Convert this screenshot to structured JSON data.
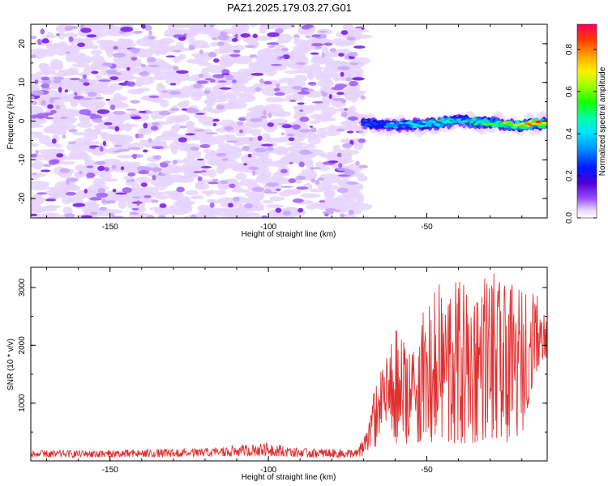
{
  "title": "PAZ1.2025.179.03.27.G01",
  "colors": {
    "snr_line": "#e03030",
    "blob_light": "#e6d4ff",
    "blob_dark": "#7a1ff0"
  },
  "chart_data": [
    {
      "type": "heatmap",
      "xlabel": "Height of straight line (km)",
      "ylabel": "Frequency (Hz)",
      "xlim": [
        -175,
        -12
      ],
      "ylim": [
        -25,
        25
      ],
      "x_ticks": [
        -150,
        -100,
        -50
      ],
      "y_ticks": [
        -20,
        -10,
        0,
        10,
        20
      ],
      "colorbar": {
        "label": "Normalized spectral amplitude",
        "range": [
          0.0,
          0.92
        ],
        "ticks": [
          0.0,
          0.2,
          0.4,
          0.6,
          0.8
        ],
        "colormap": "rainbow (purple to red)"
      },
      "noise_region_x": [
        -175,
        -70
      ],
      "signal_band": {
        "x_start": -70,
        "x_end": -12,
        "center_frequency_hz": [
          [
            -70,
            -0.5
          ],
          [
            -60,
            -1.2
          ],
          [
            -50,
            -0.8
          ],
          [
            -45,
            -0.4
          ],
          [
            -40,
            0.2
          ],
          [
            -30,
            -0.6
          ],
          [
            -20,
            -1.0
          ],
          [
            -15,
            -0.6
          ],
          [
            -12,
            -0.5
          ]
        ],
        "peak_amplitude": [
          [
            -70,
            0.28
          ],
          [
            -60,
            0.35
          ],
          [
            -50,
            0.45
          ],
          [
            -45,
            0.5
          ],
          [
            -40,
            0.4
          ],
          [
            -30,
            0.55
          ],
          [
            -20,
            0.7
          ],
          [
            -15,
            0.92
          ],
          [
            -12,
            0.6
          ]
        ]
      }
    },
    {
      "type": "line",
      "xlabel": "Height of straight line (km)",
      "ylabel": "SNR (10 * v/v)",
      "xlim": [
        -175,
        -12
      ],
      "ylim": [
        0,
        3350
      ],
      "x_ticks": [
        -150,
        -100,
        -50
      ],
      "y_ticks": [
        1000,
        2000,
        3000
      ],
      "grid": false,
      "series": [
        {
          "envelope_x": [
            -175,
            -150,
            -120,
            -100,
            -90,
            -80,
            -72,
            -70,
            -66,
            -64,
            -60,
            -56,
            -50,
            -46,
            -40,
            -36,
            -30,
            -26,
            -20,
            -16,
            -12
          ],
          "envelope_min": [
            60,
            60,
            70,
            90,
            60,
            60,
            60,
            80,
            250,
            700,
            300,
            300,
            300,
            300,
            300,
            300,
            400,
            300,
            400,
            1500,
            1800
          ],
          "envelope_max": [
            180,
            190,
            220,
            320,
            220,
            210,
            200,
            400,
            1400,
            1600,
            2300,
            2050,
            2700,
            3100,
            3150,
            3050,
            3350,
            3050,
            3050,
            2950,
            2650
          ]
        }
      ]
    }
  ]
}
